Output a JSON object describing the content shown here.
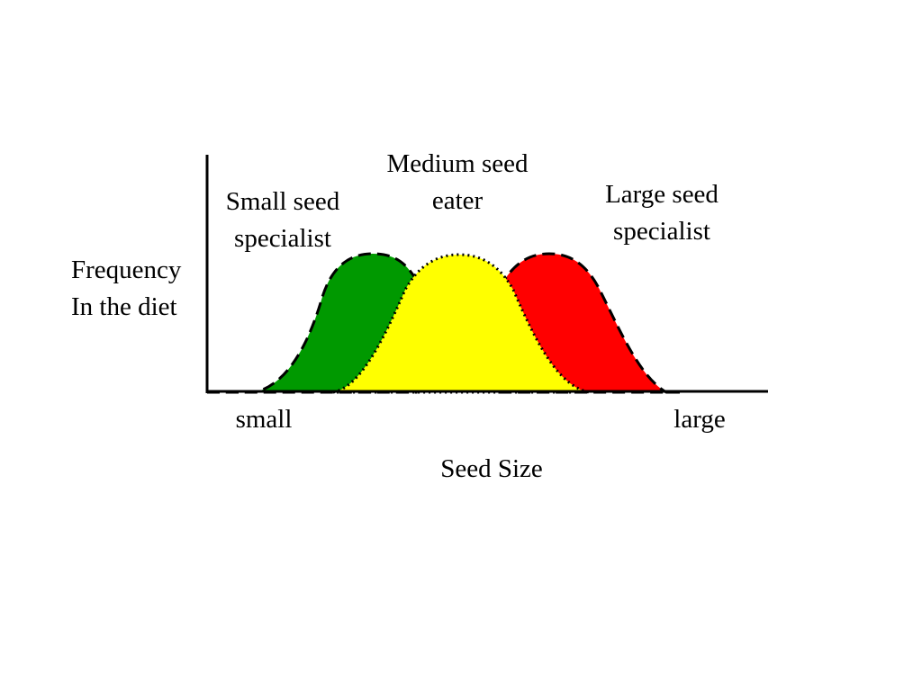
{
  "colors": {
    "small_fill": "#009900",
    "medium_fill": "#ffff00",
    "large_fill": "#ff0000",
    "axis": "#000000",
    "outline": "#000000"
  },
  "labels": {
    "small_specialist": [
      "Small seed",
      "specialist"
    ],
    "medium_eater": [
      "Medium seed",
      "eater"
    ],
    "large_specialist": [
      "Large seed",
      "specialist"
    ],
    "y_axis": [
      "Frequency",
      "In the diet"
    ],
    "x_small": "small",
    "x_large": "large",
    "x_axis": "Seed Size"
  }
}
